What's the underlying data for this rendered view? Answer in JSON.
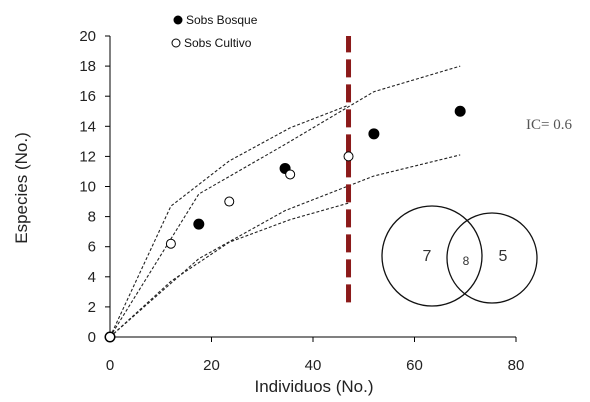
{
  "chart_data": {
    "type": "scatter",
    "xlabel": "Individuos (No.)",
    "ylabel": "Especies (No.)",
    "xlim": [
      0,
      80
    ],
    "ylim": [
      0,
      20
    ],
    "xticks": [
      0,
      20,
      40,
      60,
      80
    ],
    "yticks": [
      0,
      2,
      4,
      6,
      8,
      10,
      12,
      14,
      16,
      18,
      20
    ],
    "grid": false,
    "legend_position": "top-left",
    "series": [
      {
        "name": "Sobs Bosque",
        "marker": "filled-circle",
        "color": "#000000",
        "x": [
          0,
          17.5,
          34.5,
          52,
          69
        ],
        "y": [
          0,
          7.5,
          11.2,
          13.5,
          15
        ]
      },
      {
        "name": "Sobs Cultivo",
        "marker": "open-circle",
        "color": "#000000",
        "x": [
          0,
          12,
          23.5,
          35.5,
          47
        ],
        "y": [
          0,
          6.2,
          9,
          10.8,
          12
        ]
      }
    ],
    "confidence_lines": [
      {
        "style": "dashed",
        "x": [
          0,
          12,
          23.5,
          35.5,
          47
        ],
        "y": [
          0,
          8.7,
          11.7,
          13.9,
          15.4
        ]
      },
      {
        "style": "dashed",
        "x": [
          0,
          12,
          23.5,
          35.5,
          47
        ],
        "y": [
          0,
          3.7,
          6.3,
          7.8,
          8.9
        ]
      },
      {
        "style": "dashed",
        "x": [
          0,
          17.5,
          34.5,
          52,
          69
        ],
        "y": [
          0,
          9.5,
          12.8,
          16.3,
          18
        ]
      },
      {
        "style": "dashed",
        "x": [
          0,
          17.5,
          34.5,
          52,
          69
        ],
        "y": [
          0,
          5.2,
          8.4,
          10.7,
          12.1
        ]
      }
    ],
    "reference_line": {
      "x": 47,
      "style": "thick-dashed",
      "color": "#8b1a1a",
      "y_range": [
        2.3,
        20
      ]
    },
    "annotation": "IC= 0.6",
    "venn": {
      "left_only": "7",
      "shared": "8",
      "right_only": "5"
    }
  }
}
